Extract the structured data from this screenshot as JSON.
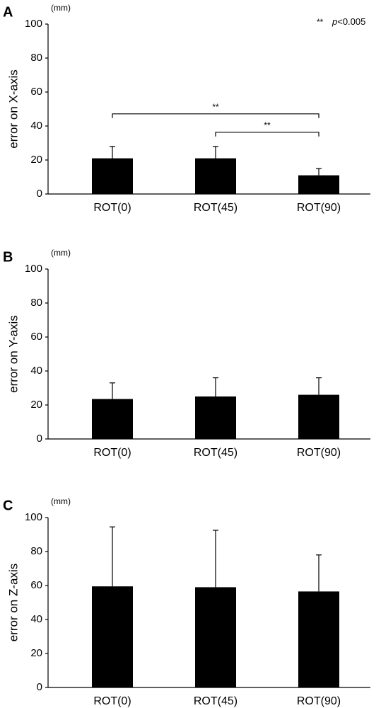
{
  "chart_data": [
    {
      "type": "bar",
      "panel": "A",
      "unit": "(mm)",
      "ylabel": "error on X-axis",
      "categories": [
        "ROT(0)",
        "ROT(45)",
        "ROT(90)"
      ],
      "values": [
        21,
        21,
        11
      ],
      "errors": [
        7,
        7,
        4
      ],
      "color": "#000000",
      "ylim": [
        0,
        100
      ],
      "yticks": [
        0,
        20,
        40,
        60,
        80,
        100
      ],
      "brackets": [
        {
          "from": 0,
          "to": 2,
          "label": "**"
        },
        {
          "from": 1,
          "to": 2,
          "label": "**"
        }
      ],
      "significance_symbol": "**",
      "significance_note": "p<0.005"
    },
    {
      "type": "bar",
      "panel": "B",
      "unit": "(mm)",
      "ylabel": "error on Y-axis",
      "categories": [
        "ROT(0)",
        "ROT(45)",
        "ROT(90)"
      ],
      "values": [
        23.5,
        25,
        26
      ],
      "errors": [
        9.5,
        11,
        10
      ],
      "color": "#000000",
      "ylim": [
        0,
        100
      ],
      "yticks": [
        0,
        20,
        40,
        60,
        80,
        100
      ]
    },
    {
      "type": "bar",
      "panel": "C",
      "unit": "(mm)",
      "ylabel": "error on Z-axis",
      "categories": [
        "ROT(0)",
        "ROT(45)",
        "ROT(90)"
      ],
      "values": [
        59.5,
        59,
        56.5
      ],
      "errors": [
        35,
        33.5,
        21.5
      ],
      "color": "#000000",
      "ylim": [
        0,
        100
      ],
      "yticks": [
        0,
        20,
        40,
        60,
        80,
        100
      ]
    }
  ]
}
